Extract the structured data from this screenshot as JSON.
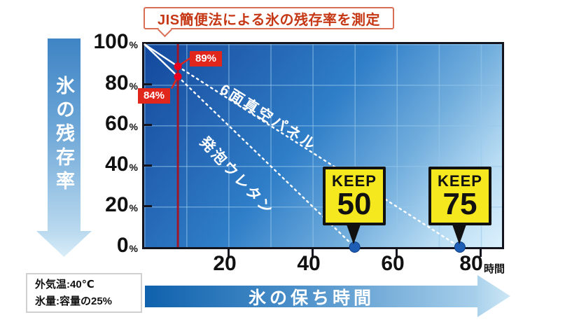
{
  "title": {
    "text": "JIS簡便法による氷の残存率を測定"
  },
  "y_axis_arrow": {
    "label": "氷の残存率"
  },
  "x_axis_arrow": {
    "label": "氷の保ち時間"
  },
  "conditions": {
    "line1": "外気温:40℃",
    "line2": "氷量:容量の25%"
  },
  "chart_data": {
    "type": "line",
    "title": "JIS簡便法による氷の残存率を測定",
    "xlabel": "氷の保ち時間",
    "ylabel": "氷の残存率",
    "x_axis": {
      "ticks": [
        20,
        40,
        60,
        80
      ],
      "unit": "時間",
      "range": [
        0,
        85
      ]
    },
    "y_axis": {
      "ticks": [
        100,
        80,
        60,
        40,
        20,
        0
      ],
      "percent_sign": "%",
      "range": [
        0,
        100
      ]
    },
    "grid": true,
    "series": [
      {
        "name": "6面真空パネル",
        "points": [
          [
            0,
            100
          ],
          [
            8,
            89
          ],
          [
            75,
            0
          ]
        ],
        "keep_hours": 75
      },
      {
        "name": "発泡ウレタン",
        "points": [
          [
            0,
            100
          ],
          [
            8,
            84
          ],
          [
            50,
            0
          ]
        ],
        "keep_hours": 50
      }
    ],
    "measurement": {
      "x_hours": 8,
      "readings": [
        {
          "label": "89%",
          "value": 89,
          "series": "6面真空パネル"
        },
        {
          "label": "84%",
          "value": 84,
          "series": "発泡ウレタン"
        }
      ]
    },
    "keep_badges": [
      {
        "keyword": "KEEP",
        "hours": "50"
      },
      {
        "keyword": "KEEP",
        "hours": "75"
      }
    ],
    "colors": {
      "plot_gradient_start": "#12489e",
      "plot_gradient_end": "#dbf0fc",
      "grid_line": "#96c8eb",
      "series_line": "#ffffff",
      "measure_line": "#a8101f",
      "reading_dot": "#e8001f",
      "reading_label_bg": "#e1261c",
      "endpoint_dot": "#1d5db4",
      "keep_badge_bg": "#f6e81f",
      "title_text": "#c63815",
      "axis_text": "#111111"
    }
  }
}
